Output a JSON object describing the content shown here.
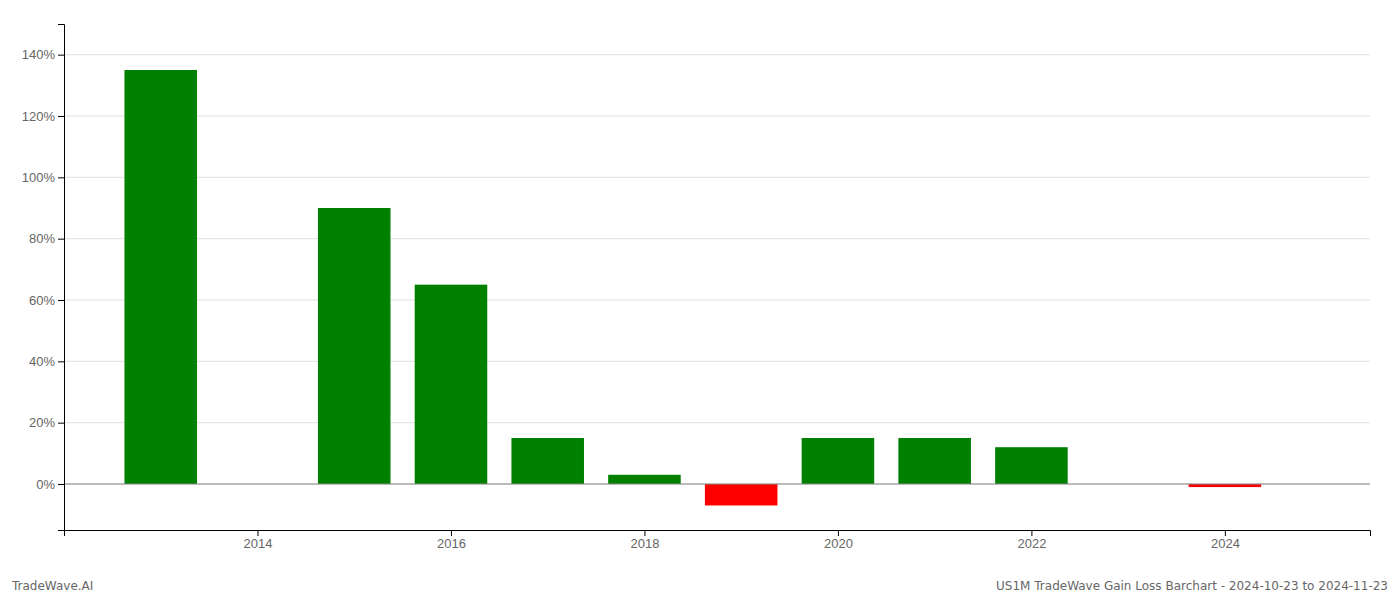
{
  "chart_data": {
    "type": "bar",
    "title": "US1M TradeWave Gain Loss Barchart - 2024-10-23 to 2024-11-23",
    "annotations": [
      "TradeWave.AI"
    ],
    "x": [
      2013,
      2015,
      2016,
      2017,
      2018,
      2019,
      2020,
      2021,
      2022,
      2024
    ],
    "values": [
      1.35,
      0.9,
      0.65,
      0.15,
      0.03,
      -0.07,
      0.15,
      0.15,
      0.12,
      -0.01
    ],
    "colors": [
      "#008000",
      "#008000",
      "#008000",
      "#008000",
      "#008000",
      "#ff0000",
      "#008000",
      "#008000",
      "#008000",
      "#ff0000"
    ],
    "xlim": [
      2012.0,
      2025.5
    ],
    "xticks": [
      2014,
      2016,
      2018,
      2020,
      2022,
      2024
    ],
    "ylim": [
      -0.15,
      1.5
    ],
    "yticks": [
      {
        "value": 0,
        "label": "0%"
      },
      {
        "value": 0.2,
        "label": "20%"
      },
      {
        "value": 0.4,
        "label": "40%"
      },
      {
        "value": 0.6,
        "label": "60%"
      },
      {
        "value": 0.8,
        "label": "80%"
      },
      {
        "value": 1.0,
        "label": "100%"
      },
      {
        "value": 1.2,
        "label": "120%"
      },
      {
        "value": 1.4,
        "label": "140%"
      }
    ],
    "grid": true
  }
}
